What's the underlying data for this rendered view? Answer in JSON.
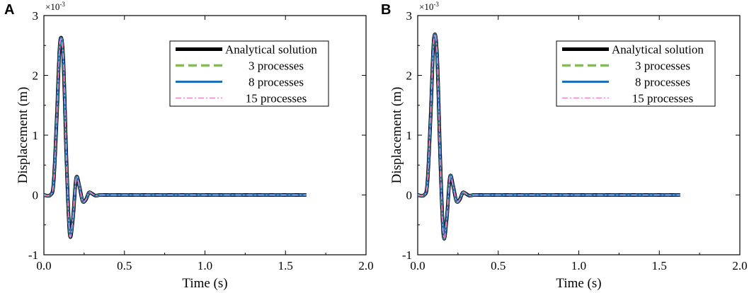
{
  "chart_data": [
    {
      "panel": "A",
      "type": "line",
      "xlabel": "Time (s)",
      "ylabel": "Displacement (m)",
      "xlim": [
        0.0,
        2.0
      ],
      "ylim": [
        -1,
        3
      ],
      "x_ticks": [
        "0.0",
        "0.5",
        "1.0",
        "1.5",
        "2.0"
      ],
      "y_ticks": [
        "-1",
        "0",
        "1",
        "2",
        "3"
      ],
      "y_multiplier": "×10-3",
      "legend_position": "top-right",
      "series": [
        {
          "name": "Analytical solution",
          "color": "#000000",
          "style": "solid-thick"
        },
        {
          "name": "3 processes",
          "color": "#7dc242",
          "style": "dashed"
        },
        {
          "name": "8 processes",
          "color": "#1f6fb4",
          "style": "solid"
        },
        {
          "name": "15 processes",
          "color": "#ee82c8",
          "style": "dash-dot"
        }
      ],
      "x": [
        0.0,
        0.04,
        0.06,
        0.08,
        0.1,
        0.12,
        0.14,
        0.16,
        0.18,
        0.2,
        0.22,
        0.24,
        0.26,
        0.28,
        0.3,
        0.32,
        0.35,
        0.4,
        0.6,
        1.0,
        1.4,
        1.63
      ],
      "y": [
        0.0,
        0.0,
        0.2,
        1.3,
        2.55,
        2.3,
        0.6,
        -0.65,
        -0.4,
        0.28,
        0.15,
        -0.1,
        -0.08,
        0.04,
        0.02,
        -0.01,
        0.0,
        0.0,
        0.0,
        0.0,
        0.0,
        0.0
      ]
    },
    {
      "panel": "B",
      "type": "line",
      "xlabel": "Time (s)",
      "ylabel": "Displacement (m)",
      "xlim": [
        0.0,
        2.0
      ],
      "ylim": [
        -1,
        3
      ],
      "x_ticks": [
        "0.0",
        "0.5",
        "1.0",
        "1.5",
        "2.0"
      ],
      "y_ticks": [
        "-1",
        "0",
        "1",
        "2",
        "3"
      ],
      "y_multiplier": "×10-3",
      "legend_position": "top-right",
      "series": [
        {
          "name": "Analytical solution",
          "color": "#000000",
          "style": "solid-thick"
        },
        {
          "name": "3 processes",
          "color": "#7dc242",
          "style": "dashed"
        },
        {
          "name": "8 processes",
          "color": "#1f6fb4",
          "style": "solid"
        },
        {
          "name": "15 processes",
          "color": "#ee82c8",
          "style": "dash-dot"
        }
      ],
      "x": [
        0.0,
        0.04,
        0.06,
        0.08,
        0.1,
        0.12,
        0.14,
        0.16,
        0.18,
        0.2,
        0.22,
        0.24,
        0.26,
        0.28,
        0.3,
        0.32,
        0.35,
        0.4,
        0.6,
        1.0,
        1.4,
        1.63
      ],
      "y": [
        0.0,
        0.0,
        0.2,
        1.3,
        2.6,
        2.35,
        0.6,
        -0.68,
        -0.4,
        0.3,
        0.15,
        -0.1,
        -0.08,
        0.04,
        0.02,
        -0.01,
        0.0,
        0.0,
        0.0,
        0.0,
        0.0,
        0.0
      ]
    }
  ]
}
